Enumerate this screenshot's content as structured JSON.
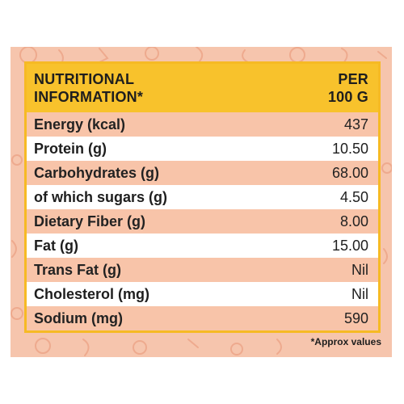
{
  "header": {
    "left_line1": "NUTRITIONAL",
    "left_line2": "INFORMATION*",
    "right_line1": "PER",
    "right_line2": "100 G"
  },
  "rows": [
    {
      "label": "Energy (kcal)",
      "value": "437"
    },
    {
      "label": "Protein (g)",
      "value": "10.50"
    },
    {
      "label": "Carbohydrates (g)",
      "value": "68.00"
    },
    {
      "label": "of which sugars (g)",
      "value": "4.50"
    },
    {
      "label": "Dietary Fiber (g)",
      "value": "8.00"
    },
    {
      "label": "Fat (g)",
      "value": "15.00"
    },
    {
      "label": "Trans Fat (g)",
      "value": "Nil"
    },
    {
      "label": "Cholesterol (mg)",
      "value": "Nil"
    },
    {
      "label": "Sodium (mg)",
      "value": "590"
    }
  ],
  "footnote": "*Approx values",
  "colors": {
    "panel_background": "#f6c5ad",
    "header_yellow": "#f8c22c",
    "tinted_row": "#f8c4a9",
    "white_row": "#ffffff"
  }
}
